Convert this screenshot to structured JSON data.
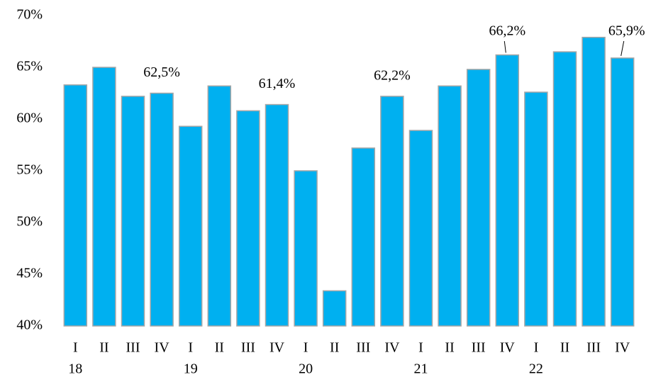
{
  "chart_data": {
    "type": "bar",
    "categories": [
      "I",
      "II",
      "III",
      "IV",
      "I",
      "II",
      "III",
      "IV",
      "I",
      "II",
      "III",
      "IV",
      "I",
      "II",
      "III",
      "IV",
      "I",
      "II",
      "III",
      "IV"
    ],
    "year_labels": [
      "18",
      "19",
      "20",
      "21",
      "22"
    ],
    "values": [
      63.3,
      65.0,
      62.2,
      62.5,
      59.3,
      63.2,
      60.8,
      61.4,
      55.0,
      43.4,
      57.2,
      62.2,
      58.9,
      63.2,
      64.8,
      66.2,
      62.6,
      66.5,
      67.9,
      65.9
    ],
    "value_labels": [
      null,
      null,
      null,
      "62,5%",
      null,
      null,
      null,
      "61,4%",
      null,
      null,
      null,
      "62,2%",
      null,
      null,
      null,
      "66,2%",
      null,
      null,
      null,
      "65,9%"
    ],
    "color": "#00b0f0",
    "ylim": [
      40,
      70
    ],
    "yticks": [
      {
        "value": 40,
        "label": "40%"
      },
      {
        "value": 45,
        "label": "45%"
      },
      {
        "value": 50,
        "label": "50%"
      },
      {
        "value": 55,
        "label": "55%"
      },
      {
        "value": 60,
        "label": "60%"
      },
      {
        "value": 65,
        "label": "65%"
      },
      {
        "value": 70,
        "label": "70%"
      }
    ],
    "grid": false
  }
}
